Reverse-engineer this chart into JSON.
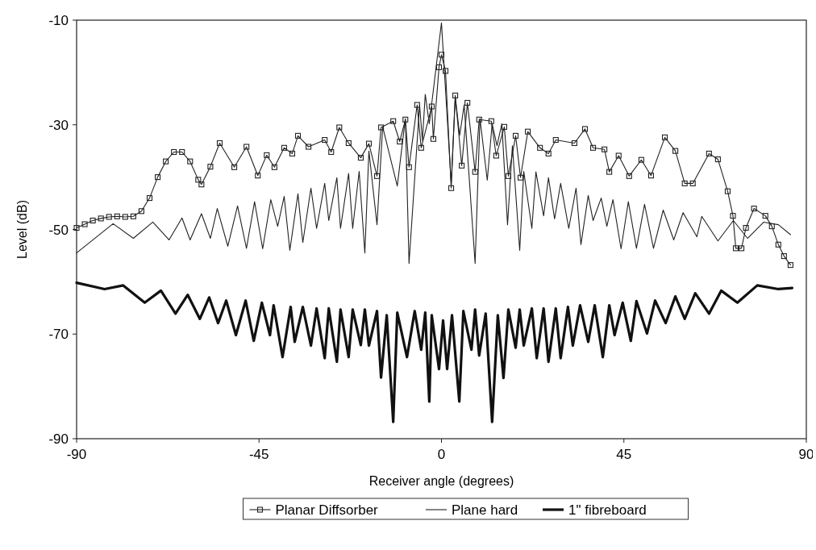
{
  "chart_data": {
    "type": "line",
    "xlabel": "Receiver angle (degrees)",
    "ylabel": "Level (dB)",
    "xlim": [
      -90,
      90
    ],
    "xticks": [
      -90,
      -45,
      0,
      45,
      90
    ],
    "ylim": [
      -90,
      -10
    ],
    "yticks": [
      -90,
      -70,
      -50,
      -30,
      -10
    ],
    "grid": false,
    "legend": "bottom",
    "series": [
      {
        "name": "Planar Diffsorber",
        "color": "#222222",
        "marker": "square",
        "x": [
          -90,
          -88,
          -86,
          -84,
          -82,
          -80,
          -78,
          -76,
          -74,
          -72,
          -70,
          -68,
          -66,
          -64,
          -62,
          -60,
          -59.2,
          -57,
          -54.7,
          -51.1,
          -48.1,
          -45.3,
          -43.1,
          -41.2,
          -38.8,
          -36.8,
          -35.4,
          -32.8,
          -28.8,
          -27.2,
          -25.2,
          -22.9,
          -19.9,
          -17.9,
          -15.9,
          -14.9,
          -11.9,
          -10.3,
          -8.9,
          -8,
          -6,
          -5,
          -2.4,
          -2,
          -0.6,
          0,
          1,
          2.4,
          3.4,
          5,
          6.4,
          8.3,
          9.3,
          12.3,
          13.5,
          15.5,
          16.5,
          18.3,
          19.5,
          21.3,
          24.3,
          26.4,
          28.2,
          32.8,
          35.4,
          37.4,
          40.2,
          41.4,
          43.7,
          46.3,
          49.3,
          51.7,
          55.1,
          57.7,
          60,
          62,
          66,
          68.2,
          70.6,
          71.9,
          72.6,
          74,
          75.1,
          77.1,
          79.9,
          81.5,
          83.1,
          84.5,
          86.1
        ],
        "values": [
          -49.7,
          -49,
          -48.3,
          -47.9,
          -47.6,
          -47.5,
          -47.6,
          -47.5,
          -46.5,
          -44,
          -40,
          -37,
          -35.2,
          -35.2,
          -37,
          -40.5,
          -41.4,
          -38,
          -33.5,
          -38.1,
          -34.2,
          -39.7,
          -35.8,
          -38.1,
          -34.4,
          -35.5,
          -32.1,
          -34.2,
          -32.9,
          -35.2,
          -30.5,
          -33.5,
          -36.3,
          -33.6,
          -39.8,
          -30.5,
          -29.3,
          -33.2,
          -29,
          -38.1,
          -26.2,
          -34.4,
          -26.5,
          -32.7,
          -19,
          -16.6,
          -19.7,
          -42.1,
          -24.4,
          -37.8,
          -25.8,
          -39,
          -29,
          -29.3,
          -35.9,
          -30.4,
          -39.8,
          -32.1,
          -40.1,
          -31.3,
          -34.4,
          -35.5,
          -32.9,
          -33.5,
          -30.8,
          -34.4,
          -34.7,
          -39,
          -35.9,
          -39.8,
          -36.7,
          -39.7,
          -32.4,
          -35,
          -41.2,
          -41.2,
          -35.5,
          -36.6,
          -42.7,
          -47.4,
          -53.6,
          -53.6,
          -49.7,
          -46,
          -47.4,
          -49.4,
          -52.9,
          -55.1,
          -56.8
        ]
      },
      {
        "name": "Plane hard",
        "color": "#222222",
        "marker": "none",
        "x": [
          -90,
          -81,
          -76,
          -71.2,
          -67.2,
          -64,
          -62,
          -59.2,
          -57,
          -55.3,
          -52.7,
          -50.3,
          -48.1,
          -46.1,
          -44.1,
          -42.1,
          -40.4,
          -38.8,
          -37.4,
          -35.4,
          -34.2,
          -32.2,
          -30.8,
          -28.8,
          -27.8,
          -25.8,
          -24.9,
          -22.9,
          -21.9,
          -20.3,
          -18.9,
          -17.9,
          -15.9,
          -14.5,
          -10.9,
          -8.9,
          -8,
          -5.4,
          -4.7,
          -4,
          -3,
          0,
          2.4,
          3.4,
          4.5,
          5.6,
          8.3,
          9.5,
          11.3,
          12.5,
          13.7,
          14.9,
          16.3,
          17.5,
          19.3,
          20.3,
          22.3,
          23.3,
          25.2,
          26.4,
          27.9,
          29.4,
          31.4,
          33.2,
          34.4,
          36.2,
          37.4,
          39.4,
          40.8,
          42.3,
          44.3,
          46.1,
          48.1,
          50.1,
          52.3,
          54.7,
          57.3,
          59.6,
          63,
          64.2,
          68.2,
          72,
          75.5,
          79.5,
          83.1,
          86.1
        ],
        "values": [
          -54.5,
          -48.9,
          -51.7,
          -48.6,
          -52,
          -47.8,
          -52,
          -47,
          -51.7,
          -46,
          -53.2,
          -45.5,
          -53.6,
          -44.7,
          -53.7,
          -44.3,
          -49.4,
          -43.7,
          -54,
          -43.2,
          -52.5,
          -42.1,
          -49.8,
          -41.2,
          -48.3,
          -40.1,
          -49.8,
          -39.3,
          -49.8,
          -38.9,
          -54.5,
          -35,
          -49.1,
          -30.4,
          -41.7,
          -28.8,
          -56.5,
          -26.2,
          -33,
          -24.2,
          -29.8,
          -10.5,
          -41.2,
          -24.7,
          -32,
          -26.2,
          -56.5,
          -28.8,
          -40.6,
          -29.8,
          -34,
          -29.8,
          -49.1,
          -34,
          -54,
          -38.9,
          -49.8,
          -39,
          -47.4,
          -40.1,
          -48,
          -41.2,
          -49.8,
          -42.1,
          -52.9,
          -43.5,
          -48.3,
          -44,
          -49.4,
          -44.3,
          -53.7,
          -44.7,
          -53.6,
          -45.2,
          -53.6,
          -46.3,
          -52,
          -46.8,
          -51.4,
          -47.5,
          -52.2,
          -48.3,
          -51.7,
          -48.6,
          -49.1,
          -51
        ]
      },
      {
        "name": "1\" fibreboard",
        "color": "#111111",
        "marker": "none",
        "x": [
          -90,
          -83.1,
          -78.5,
          -73.2,
          -69.2,
          -65.6,
          -62.6,
          -59.6,
          -57.3,
          -55.1,
          -53.1,
          -50.7,
          -48.3,
          -46.3,
          -44.3,
          -42.3,
          -41.4,
          -39.2,
          -37.2,
          -36.2,
          -34.2,
          -32.2,
          -30.8,
          -28.8,
          -27.8,
          -25.8,
          -24.9,
          -22.9,
          -21.9,
          -19.9,
          -18.9,
          -17.9,
          -15.9,
          -14.9,
          -13.5,
          -11.9,
          -10.9,
          -8.5,
          -6.6,
          -5,
          -4,
          -3,
          -2.4,
          -0.6,
          0.4,
          1.4,
          2.6,
          4.4,
          5.4,
          7.4,
          8.3,
          9.3,
          10.9,
          12.5,
          13.9,
          15.3,
          16.5,
          18.3,
          19.3,
          20.3,
          22.3,
          23.5,
          25.2,
          26.4,
          28.2,
          29.4,
          31.2,
          32.4,
          34.2,
          36.2,
          37.8,
          39.8,
          41.4,
          42.7,
          44.7,
          46.7,
          48.1,
          50.7,
          52.7,
          55.3,
          57.7,
          60,
          62.6,
          66,
          69,
          73,
          77.9,
          83.1,
          86.5
        ],
        "values": [
          -60.2,
          -61.4,
          -60.7,
          -64,
          -61.7,
          -66.1,
          -62.5,
          -67.1,
          -63,
          -67.9,
          -63.6,
          -70.2,
          -63.6,
          -71.3,
          -64,
          -70.2,
          -64.5,
          -74.4,
          -64.8,
          -71.5,
          -64.8,
          -72.2,
          -65.1,
          -74.6,
          -65.1,
          -75.3,
          -65.3,
          -74.4,
          -65.3,
          -72.1,
          -65.3,
          -72.2,
          -65.6,
          -78.3,
          -66.4,
          -86.8,
          -65.9,
          -74.4,
          -65.6,
          -73,
          -65.9,
          -82.9,
          -66.4,
          -76.7,
          -67.4,
          -76.7,
          -66.4,
          -82.9,
          -65.6,
          -73,
          -65.3,
          -74.1,
          -66.1,
          -86.8,
          -66.4,
          -78.4,
          -65.3,
          -72.6,
          -65.3,
          -72.2,
          -65.1,
          -74.6,
          -65.1,
          -75.3,
          -65.1,
          -74.6,
          -64.8,
          -72.2,
          -64.5,
          -71.5,
          -64.5,
          -74.4,
          -64.5,
          -70.2,
          -64,
          -71.3,
          -63.7,
          -69.9,
          -63.6,
          -67.9,
          -62.8,
          -67.1,
          -62.2,
          -66.1,
          -61.7,
          -64,
          -60.7,
          -61.4,
          -61.2
        ]
      }
    ]
  }
}
